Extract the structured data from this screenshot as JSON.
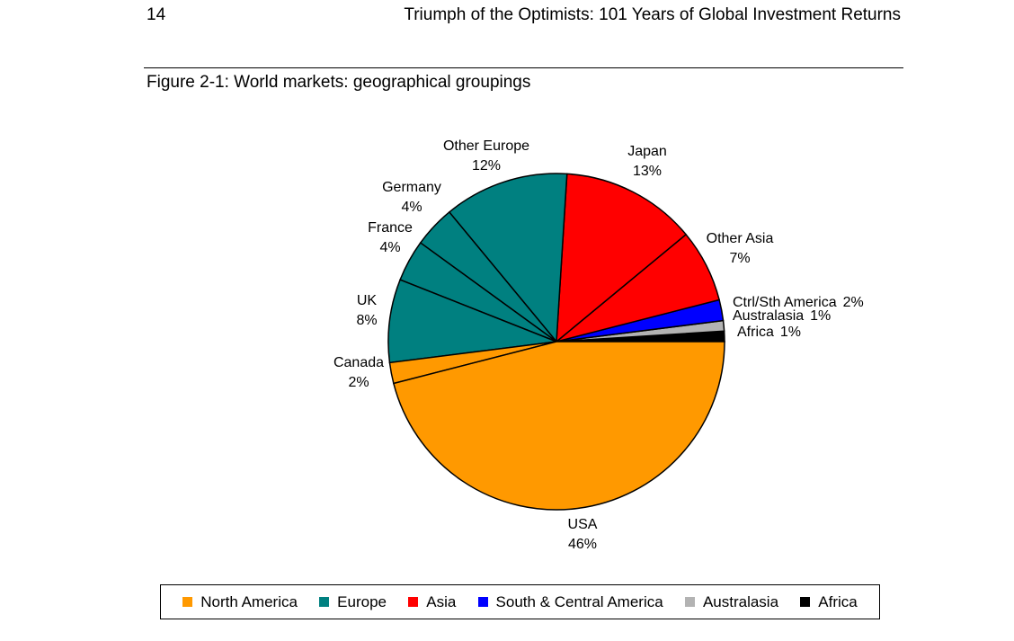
{
  "page": {
    "number": "14",
    "running_header": "Triumph of the Optimists: 101 Years of Global Investment Returns",
    "figure_caption": "Figure 2-1: World markets: geographical groupings"
  },
  "chart_data": {
    "type": "pie",
    "title": "",
    "start": "3 o'clock, counter-clockwise",
    "slices": [
      {
        "label": "Africa",
        "value": 1,
        "display": "1%",
        "group": "Africa"
      },
      {
        "label": "Australasia",
        "value": 1,
        "display": "1%",
        "group": "Australasia"
      },
      {
        "label": "Ctrl/Sth America",
        "value": 2,
        "display": "2%",
        "group": "South & Central America"
      },
      {
        "label": "Other Asia",
        "value": 7,
        "display": "7%",
        "group": "Asia"
      },
      {
        "label": "Japan",
        "value": 13,
        "display": "13%",
        "group": "Asia"
      },
      {
        "label": "Other Europe",
        "value": 12,
        "display": "12%",
        "group": "Europe"
      },
      {
        "label": "Germany",
        "value": 4,
        "display": "4%",
        "group": "Europe"
      },
      {
        "label": "France",
        "value": 4,
        "display": "4%",
        "group": "Europe"
      },
      {
        "label": "UK",
        "value": 8,
        "display": "8%",
        "group": "Europe"
      },
      {
        "label": "Canada",
        "value": 2,
        "display": "2%",
        "group": "North America"
      },
      {
        "label": "USA",
        "value": 46,
        "display": "46%",
        "group": "North America"
      }
    ],
    "legend": [
      {
        "name": "North America",
        "color": "#ff9900"
      },
      {
        "name": "Europe",
        "color": "#008080"
      },
      {
        "name": "Asia",
        "color": "#ff0000"
      },
      {
        "name": "South & Central America",
        "color": "#0000ff"
      },
      {
        "name": "Australasia",
        "color": "#b3b3b3"
      },
      {
        "name": "Africa",
        "color": "#000000"
      }
    ],
    "legend_position": "bottom"
  }
}
